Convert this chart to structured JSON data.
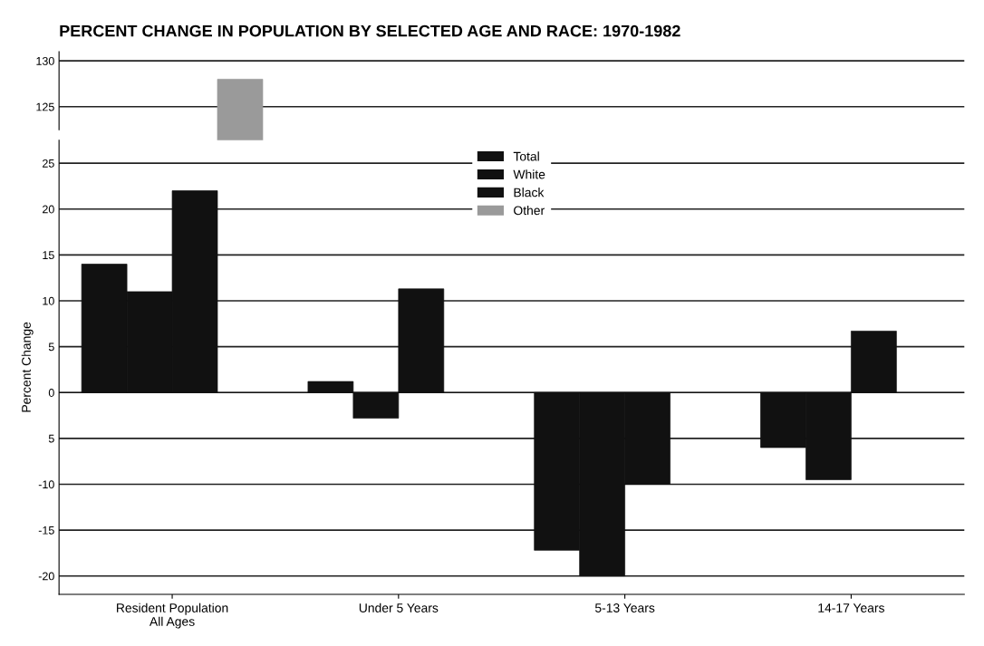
{
  "chart_data": [
    {
      "type": "bar",
      "title": "PERCENT CHANGE IN POPULATION BY SELECTED AGE AND RACE: 1970-1982",
      "series": [
        {
          "color": "#111111",
          "values": [
            null,
            null,
            null,
            null
          ]
        },
        {
          "color": "#111111",
          "values": [
            null,
            null,
            null,
            null
          ]
        },
        {
          "color": "#111111",
          "values": [
            null,
            null,
            null,
            null
          ]
        },
        {
          "color": "#9a9a9a",
          "values": [
            128,
            null,
            null,
            null
          ]
        }
      ],
      "ylim": [
        122.5,
        131
      ],
      "yticks": [
        125,
        130
      ],
      "grid": "y",
      "tick_labels": "y"
    },
    {
      "type": "bar",
      "ylabel": "Percent Change",
      "categories": [
        "Resident Population\nAll Ages",
        "Under 5 Years",
        "5-13 Years",
        "14-17 Years"
      ],
      "series": [
        {
          "name": "Total",
          "color": "#111111",
          "values": [
            14,
            1.2,
            -17.2,
            -6
          ]
        },
        {
          "name": "White",
          "color": "#111111",
          "values": [
            11,
            -2.8,
            -20,
            -9.5
          ]
        },
        {
          "name": "Black",
          "color": "#111111",
          "values": [
            22,
            11.3,
            -10,
            6.7
          ]
        },
        {
          "name": "Other",
          "color": "#9a9a9a",
          "values": [
            null,
            null,
            null,
            null
          ]
        }
      ],
      "ylim": [
        -22,
        27.5
      ],
      "yticks": [
        -20,
        -15,
        -10,
        {
          "value": -5,
          "label": "5"
        },
        0,
        5,
        10,
        15,
        20,
        25
      ],
      "grid": "y",
      "legend": "top"
    }
  ]
}
